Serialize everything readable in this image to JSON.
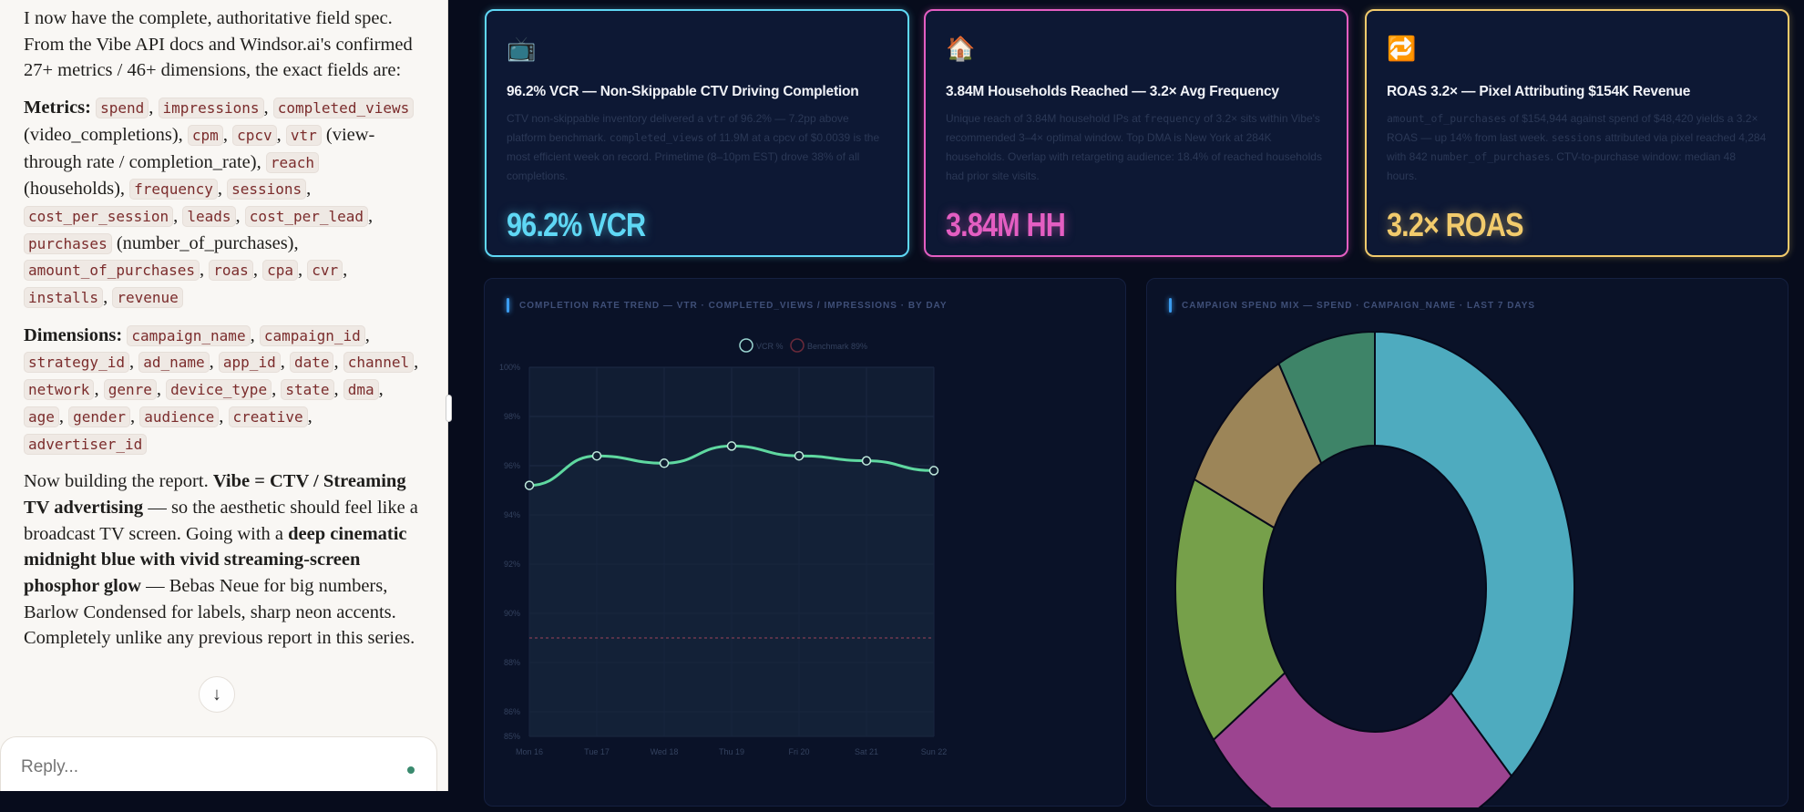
{
  "chat": {
    "paragraphs": [
      [
        {
          "t": "I now have the complete, authoritative field spec. From the Vibe API docs and Windsor.ai's confirmed 27+ metrics / 46+ dimensions, the exact fields are:"
        }
      ],
      [
        {
          "b": "Metrics:"
        },
        {
          "t": " "
        },
        {
          "c": "spend"
        },
        {
          "t": ", "
        },
        {
          "c": "impressions"
        },
        {
          "t": ", "
        },
        {
          "c": "completed_views"
        },
        {
          "t": " (video_completions), "
        },
        {
          "c": "cpm"
        },
        {
          "t": ", "
        },
        {
          "c": "cpcv"
        },
        {
          "t": ", "
        },
        {
          "c": "vtr"
        },
        {
          "t": " (view-through rate / completion_rate), "
        },
        {
          "c": "reach"
        },
        {
          "t": " (households), "
        },
        {
          "c": "frequency"
        },
        {
          "t": ", "
        },
        {
          "c": "sessions"
        },
        {
          "t": ", "
        },
        {
          "c": "cost_per_session"
        },
        {
          "t": ", "
        },
        {
          "c": "leads"
        },
        {
          "t": ", "
        },
        {
          "c": "cost_per_lead"
        },
        {
          "t": ", "
        },
        {
          "c": "purchases"
        },
        {
          "t": " (number_of_purchases), "
        },
        {
          "c": "amount_of_purchases"
        },
        {
          "t": ", "
        },
        {
          "c": "roas"
        },
        {
          "t": ", "
        },
        {
          "c": "cpa"
        },
        {
          "t": ", "
        },
        {
          "c": "cvr"
        },
        {
          "t": ", "
        },
        {
          "c": "installs"
        },
        {
          "t": ", "
        },
        {
          "c": "revenue"
        }
      ],
      [
        {
          "b": "Dimensions:"
        },
        {
          "t": " "
        },
        {
          "c": "campaign_name"
        },
        {
          "t": ", "
        },
        {
          "c": "campaign_id"
        },
        {
          "t": ", "
        },
        {
          "c": "strategy_id"
        },
        {
          "t": ", "
        },
        {
          "c": "ad_name"
        },
        {
          "t": ", "
        },
        {
          "c": "app_id"
        },
        {
          "t": ", "
        },
        {
          "c": "date"
        },
        {
          "t": ", "
        },
        {
          "c": "channel"
        },
        {
          "t": ", "
        },
        {
          "c": "network"
        },
        {
          "t": ", "
        },
        {
          "c": "genre"
        },
        {
          "t": ", "
        },
        {
          "c": "device_type"
        },
        {
          "t": ", "
        },
        {
          "c": "state"
        },
        {
          "t": ", "
        },
        {
          "c": "dma"
        },
        {
          "t": ", "
        },
        {
          "c": "age"
        },
        {
          "t": ", "
        },
        {
          "c": "gender"
        },
        {
          "t": ", "
        },
        {
          "c": "audience"
        },
        {
          "t": ", "
        },
        {
          "c": "creative"
        },
        {
          "t": ", "
        },
        {
          "c": "advertiser_id"
        }
      ],
      [
        {
          "t": "Now building the report. "
        },
        {
          "b": "Vibe = CTV / Streaming TV advertising"
        },
        {
          "t": " — so the aesthetic should feel like a broadcast TV screen. Going with a "
        },
        {
          "b": "deep cinematic midnight blue with vivid streaming-screen phosphor glow"
        },
        {
          "t": " — Bebas Neue for big numbers, Barlow Condensed for labels, sharp neon accents. Completely unlike any previous report in this series."
        }
      ]
    ],
    "reply_placeholder": "Reply...",
    "scroll_icon": "arrow-down-icon"
  },
  "cards": [
    {
      "icon": "📺",
      "icon_name": "television-icon",
      "title": "96.2% VCR — Non-Skippable CTV Driving Completion",
      "desc": [
        {
          "t": "CTV non-skippable inventory delivered a "
        },
        {
          "c": "vtr"
        },
        {
          "t": " of 96.2% — 7.2pp above platform benchmark. "
        },
        {
          "c": "completed_views"
        },
        {
          "t": " of 11.9M at a cpcv of $0.0039 is the most efficient week on record. Primetime (8–10pm EST) drove 38% of all completions."
        }
      ],
      "value": "96.2% VCR",
      "color": "#5fd8f5"
    },
    {
      "icon": "🏠",
      "icon_name": "house-icon",
      "title": "3.84M Households Reached — 3.2× Avg Frequency",
      "desc": [
        {
          "t": "Unique reach of 3.84M household IPs at "
        },
        {
          "c": "frequency"
        },
        {
          "t": " of 3.2× sits within Vibe's recommended 3–4× optimal window. Top DMA is New York at 284K households. Overlap with retargeting audience: 18.4% of reached households had prior site visits."
        }
      ],
      "value": "3.84M HH",
      "color": "#e45ec2"
    },
    {
      "icon": "🔁",
      "icon_name": "repeat-icon",
      "title": "ROAS 3.2× — Pixel Attributing $154K Revenue",
      "desc": [
        {
          "c": "amount_of_purchases"
        },
        {
          "t": " of $154,944 against spend of $48,420 yields a 3.2× ROAS — up 14% from last week. "
        },
        {
          "c": "sessions"
        },
        {
          "t": " attributed via pixel reached 4,284 with 842 "
        },
        {
          "c": "number_of_purchases"
        },
        {
          "t": ". CTV-to-purchase window: median 48 hours."
        }
      ],
      "value": "3.2× ROAS",
      "color": "#f2cb6c"
    }
  ],
  "chart_data": [
    {
      "type": "line",
      "title": "COMPLETION RATE TREND — VTR · COMPLETED_VIEWS / IMPRESSIONS · BY DAY",
      "categories": [
        "Mon 16",
        "Tue 17",
        "Wed 18",
        "Thu 19",
        "Fri 20",
        "Sat 21",
        "Sun 22"
      ],
      "series": [
        {
          "name": "VCR %",
          "values": [
            95.2,
            96.4,
            96.1,
            96.8,
            96.4,
            96.2,
            95.8
          ],
          "color": "#5fd8a0"
        },
        {
          "name": "Benchmark 89%",
          "values": [
            89,
            89,
            89,
            89,
            89,
            89,
            89
          ],
          "color": "#b8485e"
        }
      ],
      "ylim": [
        85,
        100
      ],
      "yticks": [
        "100%",
        "98%",
        "96%",
        "94%",
        "92%",
        "90%",
        "88%",
        "86%",
        "85%"
      ],
      "ytick_values": [
        100,
        98,
        96,
        94,
        92,
        90,
        88,
        86,
        85
      ],
      "legend": "top-center",
      "grid": true
    },
    {
      "type": "pie",
      "donut": true,
      "title": "CAMPAIGN SPEND MIX — SPEND · CAMPAIGN_NAME · LAST 7 DAYS",
      "values": [
        38,
        27,
        17,
        10,
        8
      ],
      "colors": [
        "#4eabbf",
        "#9c4490",
        "#76a04a",
        "#9c8558",
        "#3e8468"
      ]
    }
  ]
}
